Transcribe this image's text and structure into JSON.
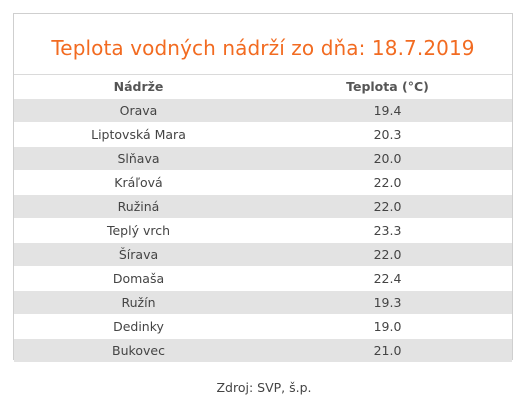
{
  "title": "Teplota vodných nádrží zo dňa: 18.7.2019",
  "table": {
    "headers": {
      "name": "Nádrže",
      "temperature": "Teplota (°C)"
    },
    "rows": [
      {
        "name": "Orava",
        "temperature": "19.4"
      },
      {
        "name": "Liptovská Mara",
        "temperature": "20.3"
      },
      {
        "name": "Slňava",
        "temperature": "20.0"
      },
      {
        "name": "Kráľová",
        "temperature": "22.0"
      },
      {
        "name": "Ružiná",
        "temperature": "22.0"
      },
      {
        "name": "Teplý vrch",
        "temperature": "23.3"
      },
      {
        "name": "Šírava",
        "temperature": "22.0"
      },
      {
        "name": "Domaša",
        "temperature": "22.4"
      },
      {
        "name": "Ružín",
        "temperature": "19.3"
      },
      {
        "name": "Dedinky",
        "temperature": "19.0"
      },
      {
        "name": "Bukovec",
        "temperature": "21.0"
      }
    ]
  },
  "source": "Zdroj: SVP, š.p.",
  "colors": {
    "title": "#f26b21",
    "row_alt": "#e3e3e3",
    "border": "#cfcfcf"
  }
}
